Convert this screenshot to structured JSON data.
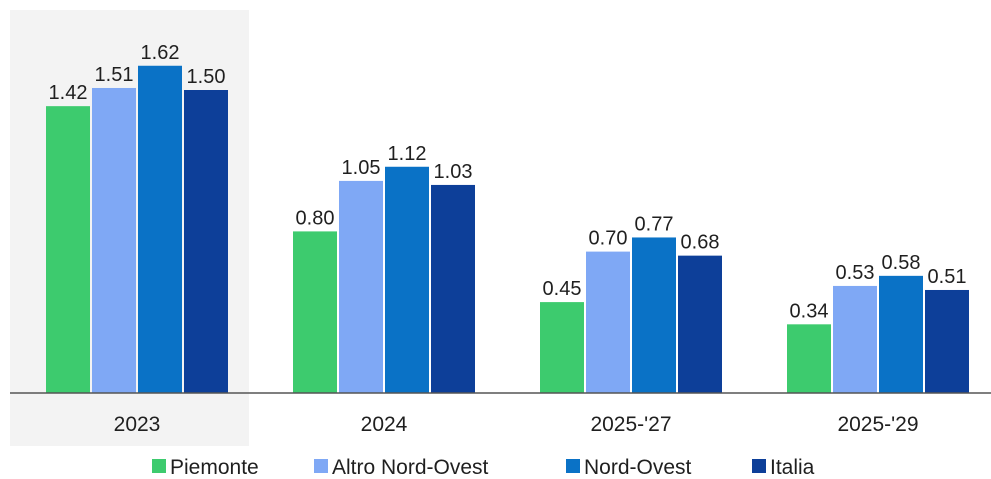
{
  "chart_data": {
    "type": "bar",
    "categories": [
      "2023",
      "2024",
      "2025-'27",
      "2025-'29"
    ],
    "highlighted_category": "2023",
    "series": [
      {
        "name": "Piemonte",
        "color": "#3dcb6e",
        "values": [
          1.42,
          0.8,
          0.45,
          0.34
        ]
      },
      {
        "name": "Altro Nord-Ovest",
        "color": "#7fa8f5",
        "values": [
          1.51,
          1.05,
          0.7,
          0.53
        ]
      },
      {
        "name": "Nord-Ovest",
        "color": "#0a72c6",
        "values": [
          1.62,
          1.12,
          0.77,
          0.58
        ]
      },
      {
        "name": "Italia",
        "color": "#0d3f99",
        "values": [
          1.5,
          1.03,
          0.68,
          0.51
        ]
      }
    ],
    "value_format": "0.00",
    "ylim": [
      0,
      2.2
    ],
    "grid": false,
    "legend_position": "bottom"
  }
}
